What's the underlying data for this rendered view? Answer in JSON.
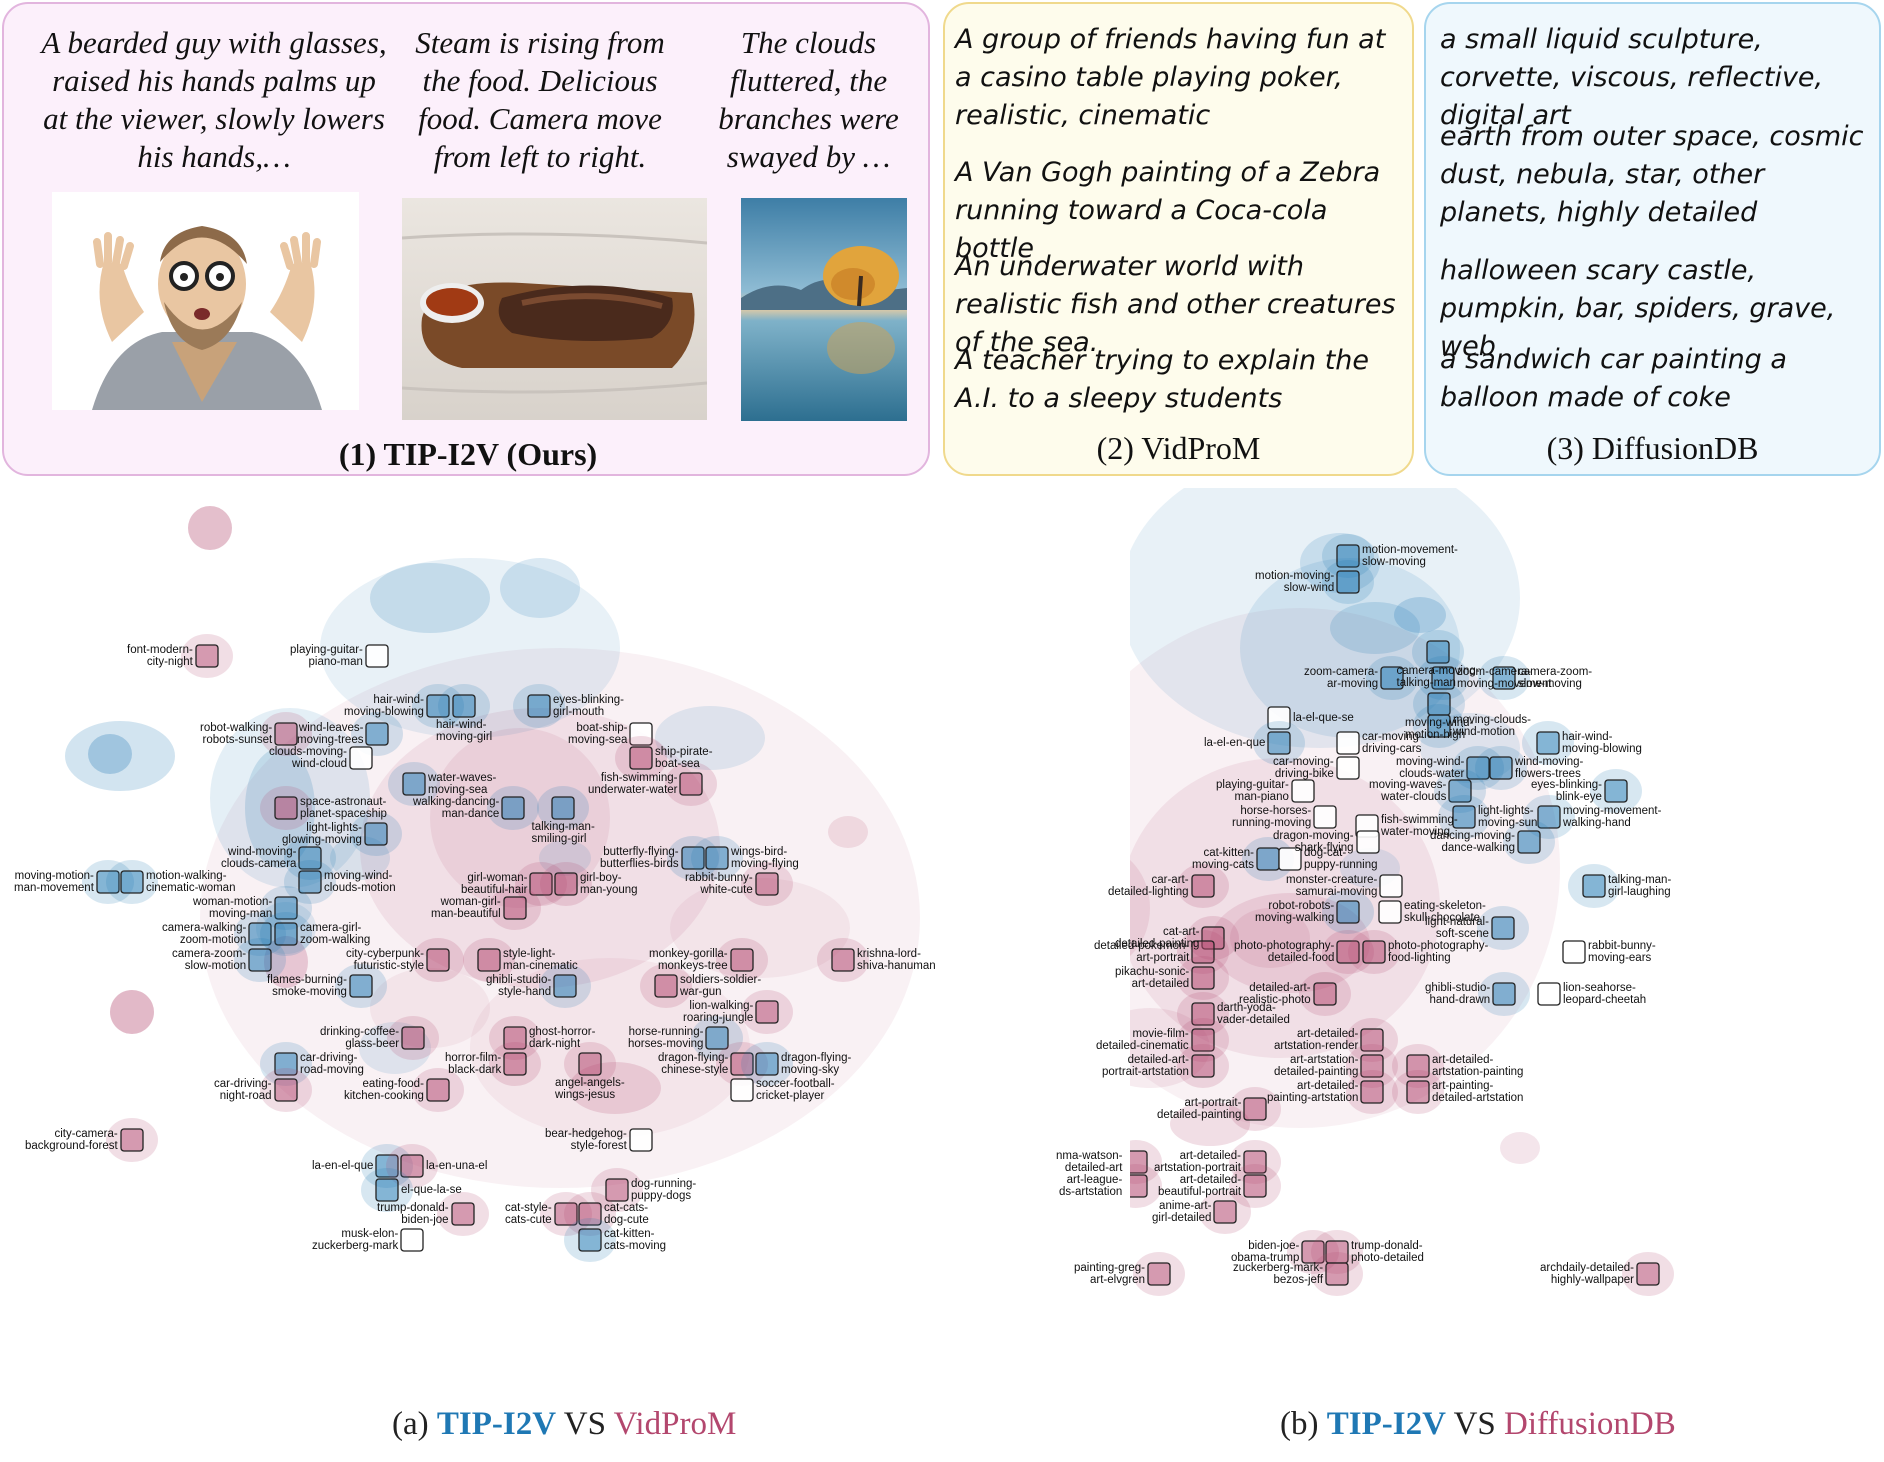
{
  "panels": {
    "tip": {
      "title": "(1) TIP-I2V (Ours)",
      "examples": [
        {
          "text": "A bearded guy with glasses, raised his hands palms up at the viewer, slowly lowers his hands,…",
          "image": "cartoon-bearded-man-hands-up"
        },
        {
          "text": "Steam is rising from the food. Delicious food. Camera move from left to right.",
          "image": "grilled-meat-on-cutting-board"
        },
        {
          "text": "The clouds fluttered, the branches were swayed by …",
          "image": "lake-with-autumn-tree"
        }
      ]
    },
    "vidprom": {
      "title": "(2) VidProM",
      "prompts": [
        "A group of friends having fun at a casino table playing poker, realistic, cinematic",
        "A Van Gogh painting of a Zebra running toward a Coca-cola bottle",
        "An underwater world with realistic fish and other creatures of the sea.",
        "A teacher trying to explain the A.I. to a sleepy students"
      ]
    },
    "diffusiondb": {
      "title": "(3) DiffusionDB",
      "prompts": [
        "a small liquid sculpture, corvette, viscous, reflective, digital art",
        "earth from outer space, cosmic dust, nebula, star, other planets, highly detailed",
        "halloween scary castle, pumpkin, bar, spiders, grave, web",
        "a sandwich car painting a balloon made of coke"
      ]
    }
  },
  "colors": {
    "tip": "#1f78b4",
    "vidprom": "#b3476e",
    "diffusiondb": "#b3476e"
  },
  "map_a": {
    "caption": {
      "prefix": "(a) ",
      "a": "TIP-I2V",
      "vs": " VS ",
      "b": "VidProM"
    },
    "clusters": [
      {
        "label": "font-modern-\ncity-night",
        "side": "red"
      },
      {
        "label": "playing-guitar-\npiano-man",
        "side": "none"
      },
      {
        "label": "hair-wind-\nmoving-blowing",
        "side": "blue"
      },
      {
        "label": "hair-wind-\nmoving-girl",
        "side": "blue"
      },
      {
        "label": "eyes-blinking-\ngirl-mouth",
        "side": "blue"
      },
      {
        "label": "robot-walking-\nrobots-sunset",
        "side": "red"
      },
      {
        "label": "wind-leaves-\nmoving-trees",
        "side": "blue"
      },
      {
        "label": "boat-ship-\nmoving-sea",
        "side": "none"
      },
      {
        "label": "clouds-moving-\nwind-cloud",
        "side": "none"
      },
      {
        "label": "ship-pirate-\nboat-sea",
        "side": "red"
      },
      {
        "label": "water-waves-\nmoving-sea",
        "side": "blue"
      },
      {
        "label": "fish-swimming-\nunderwater-water",
        "side": "red"
      },
      {
        "label": "space-astronaut-\nplanet-spaceship",
        "side": "red"
      },
      {
        "label": "walking-dancing-\nman-dance",
        "side": "blue"
      },
      {
        "label": "talking-man-\nsmiling-girl",
        "side": "blue"
      },
      {
        "label": "light-lights-\nglowing-moving",
        "side": "blue"
      },
      {
        "label": "wind-moving-\nclouds-camera",
        "side": "blue"
      },
      {
        "label": "butterfly-flying-\nbutterflies-birds",
        "side": "blue"
      },
      {
        "label": "wings-bird-\nmoving-flying",
        "side": "blue"
      },
      {
        "label": "moving-motion-\nman-movement",
        "side": "blue"
      },
      {
        "label": "motion-walking-\ncinematic-woman",
        "side": "blue"
      },
      {
        "label": "moving-wind-\nclouds-motion",
        "side": "blue"
      },
      {
        "label": "girl-woman-\nbeautiful-hair",
        "side": "red"
      },
      {
        "label": "girl-boy-\nman-young",
        "side": "red"
      },
      {
        "label": "rabbit-bunny-\nwhite-cute",
        "side": "red"
      },
      {
        "label": "woman-motion-\nmoving-man",
        "side": "blue"
      },
      {
        "label": "woman-girl-\nman-beautiful",
        "side": "red"
      },
      {
        "label": "camera-walking-\nzoom-motion",
        "side": "blue"
      },
      {
        "label": "camera-girl-\nzoom-walking",
        "side": "blue"
      },
      {
        "label": "city-cyberpunk-\nfuturistic-style",
        "side": "red"
      },
      {
        "label": "style-light-\nman-cinematic",
        "side": "red"
      },
      {
        "label": "monkey-gorilla-\nmonkeys-tree",
        "side": "red"
      },
      {
        "label": "krishna-lord-\nshiva-hanuman",
        "side": "red"
      },
      {
        "label": "camera-zoom-\nslow-motion",
        "side": "blue"
      },
      {
        "label": "flames-burning-\nsmoke-moving",
        "side": "blue"
      },
      {
        "label": "ghibli-studio-\nstyle-hand",
        "side": "blue"
      },
      {
        "label": "soldiers-soldier-\nwar-gun",
        "side": "red"
      },
      {
        "label": "lion-walking-\nroaring-jungle",
        "side": "red"
      },
      {
        "label": "drinking-coffee-\nglass-beer",
        "side": "red"
      },
      {
        "label": "ghost-horror-\ndark-night",
        "side": "red"
      },
      {
        "label": "horse-running-\nhorses-moving",
        "side": "blue"
      },
      {
        "label": "car-driving-\nroad-moving",
        "side": "blue"
      },
      {
        "label": "horror-film-\nblack-dark",
        "side": "red"
      },
      {
        "label": "dragon-flying-\nchinese-style",
        "side": "red"
      },
      {
        "label": "dragon-flying-\nmoving-sky",
        "side": "blue"
      },
      {
        "label": "car-driving-\nnight-road",
        "side": "red"
      },
      {
        "label": "eating-food-\nkitchen-cooking",
        "side": "red"
      },
      {
        "label": "angel-angels-\nwings-jesus",
        "side": "red"
      },
      {
        "label": "soccer-football-\ncricket-player",
        "side": "none"
      },
      {
        "label": "city-camera-\nbackground-forest",
        "side": "red"
      },
      {
        "label": "bear-hedgehog-\nstyle-forest",
        "side": "none"
      },
      {
        "label": "la-en-el-que",
        "side": "blue"
      },
      {
        "label": "la-en-una-el",
        "side": "red"
      },
      {
        "label": "el-que-la-se",
        "side": "blue"
      },
      {
        "label": "dog-running-\npuppy-dogs",
        "side": "red"
      },
      {
        "label": "trump-donald-\nbiden-joe",
        "side": "red"
      },
      {
        "label": "cat-style-\ncats-cute",
        "side": "red"
      },
      {
        "label": "cat-cats-\ndog-cute",
        "side": "red"
      },
      {
        "label": "musk-elon-\nzuckerberg-mark",
        "side": "none"
      },
      {
        "label": "cat-kitten-\ncats-moving",
        "side": "blue"
      }
    ]
  },
  "map_b": {
    "caption": {
      "prefix": "(b) ",
      "a": "TIP-I2V",
      "vs": " VS ",
      "b": "DiffusionDB"
    },
    "clusters": [
      {
        "label": "motion-movement-\nslow-moving",
        "side": "blue"
      },
      {
        "label": "motion-moving-\nslow-wind",
        "side": "blue"
      },
      {
        "label": "camera-moving-\ntalking-man",
        "side": "blue"
      },
      {
        "label": "zoom-camera-\nar-moving",
        "side": "blue"
      },
      {
        "label": "zoom-camera-\nmoving-movement",
        "side": "blue"
      },
      {
        "label": "camera-zoom-\nslow-moving",
        "side": "blue"
      },
      {
        "label": "moving-wind-\nmotion-high",
        "side": "blue"
      },
      {
        "label": "moving-clouds-\nwind-motion",
        "side": "blue"
      },
      {
        "label": "la-el-que-se",
        "side": "none"
      },
      {
        "label": "la-el-en-que",
        "side": "blue"
      },
      {
        "label": "car-moving-\ndriving-cars",
        "side": "none"
      },
      {
        "label": "hair-wind-\nmoving-blowing",
        "side": "blue"
      },
      {
        "label": "car-moving-\ndriving-bike",
        "side": "none"
      },
      {
        "label": "moving-wind-\nclouds-water",
        "side": "blue"
      },
      {
        "label": "wind-moving-\nflowers-trees",
        "side": "blue"
      },
      {
        "label": "playing-guitar-\nman-piano",
        "side": "none"
      },
      {
        "label": "moving-waves-\nwater-clouds",
        "side": "blue"
      },
      {
        "label": "eyes-blinking-\nblink-eye",
        "side": "blue"
      },
      {
        "label": "horse-horses-\nrunning-moving",
        "side": "none"
      },
      {
        "label": "fish-swimming-\nwater-moving",
        "side": "none"
      },
      {
        "label": "light-lights-\nmoving-sun",
        "side": "blue"
      },
      {
        "label": "moving-movement-\nwalking-hand",
        "side": "blue"
      },
      {
        "label": "dragon-moving-\nshark-flying",
        "side": "none"
      },
      {
        "label": "dancing-moving-\ndance-walking",
        "side": "blue"
      },
      {
        "label": "cat-kitten-\nmoving-cats",
        "side": "blue"
      },
      {
        "label": "dog-cat-\npuppy-running",
        "side": "none"
      },
      {
        "label": "car-art-\ndetailed-lighting",
        "side": "red"
      },
      {
        "label": "monster-creature-\nsamurai-moving",
        "side": "none"
      },
      {
        "label": "talking-man-\ngirl-laughing",
        "side": "blue"
      },
      {
        "label": "robot-robots-\nmoving-walking",
        "side": "blue"
      },
      {
        "label": "eating-skeleton-\nskull-chocolate",
        "side": "none"
      },
      {
        "label": "cat-art-\ndetailed-painting",
        "side": "red"
      },
      {
        "label": "light-natural-\nsoft-scene",
        "side": "blue"
      },
      {
        "label": "photo-photography-\ndetailed-food",
        "side": "red"
      },
      {
        "label": "photo-photography-\nfood-lighting",
        "side": "red"
      },
      {
        "label": "rabbit-bunny-\nmoving-ears",
        "side": "none"
      },
      {
        "label": "detailed-pokemon-\nart-portrait",
        "side": "red"
      },
      {
        "label": "pikachu-sonic-\nart-detailed",
        "side": "red"
      },
      {
        "label": "detailed-art-\nrealistic-photo",
        "side": "red"
      },
      {
        "label": "ghibli-studio-\nhand-drawn",
        "side": "blue"
      },
      {
        "label": "lion-seahorse-\nleopard-cheetah",
        "side": "none"
      },
      {
        "label": "darth-yoda-\nvader-detailed",
        "side": "red"
      },
      {
        "label": "movie-film-\ndetailed-cinematic",
        "side": "red"
      },
      {
        "label": "art-detailed-\nartstation-render",
        "side": "red"
      },
      {
        "label": "detailed-art-\nportrait-artstation",
        "side": "red"
      },
      {
        "label": "art-artstation-\ndetailed-painting",
        "side": "red"
      },
      {
        "label": "art-detailed-\nartstation-painting",
        "side": "red"
      },
      {
        "label": "art-detailed-\npainting-artstation",
        "side": "red"
      },
      {
        "label": "art-painting-\ndetailed-artstation",
        "side": "red"
      },
      {
        "label": "art-portrait-\ndetailed-painting",
        "side": "red"
      },
      {
        "label": "nma-watson-\ndetailed-art",
        "side": "red"
      },
      {
        "label": "art-detailed-\nartstation-portrait",
        "side": "red"
      },
      {
        "label": "art-league-\nds-artstation",
        "side": "red"
      },
      {
        "label": "art-detailed-\nbeautiful-portrait",
        "side": "red"
      },
      {
        "label": "anime-art-\ngirl-detailed",
        "side": "red"
      },
      {
        "label": "biden-joe-\nobama-trump",
        "side": "red"
      },
      {
        "label": "trump-donald-\nphoto-detailed",
        "side": "red"
      },
      {
        "label": "zuckerberg-mark-\nbezos-jeff",
        "side": "red"
      },
      {
        "label": "painting-greg-\nart-elvgren",
        "side": "red"
      },
      {
        "label": "archdaily-detailed-\nhighly-wallpaper",
        "side": "red"
      }
    ]
  }
}
